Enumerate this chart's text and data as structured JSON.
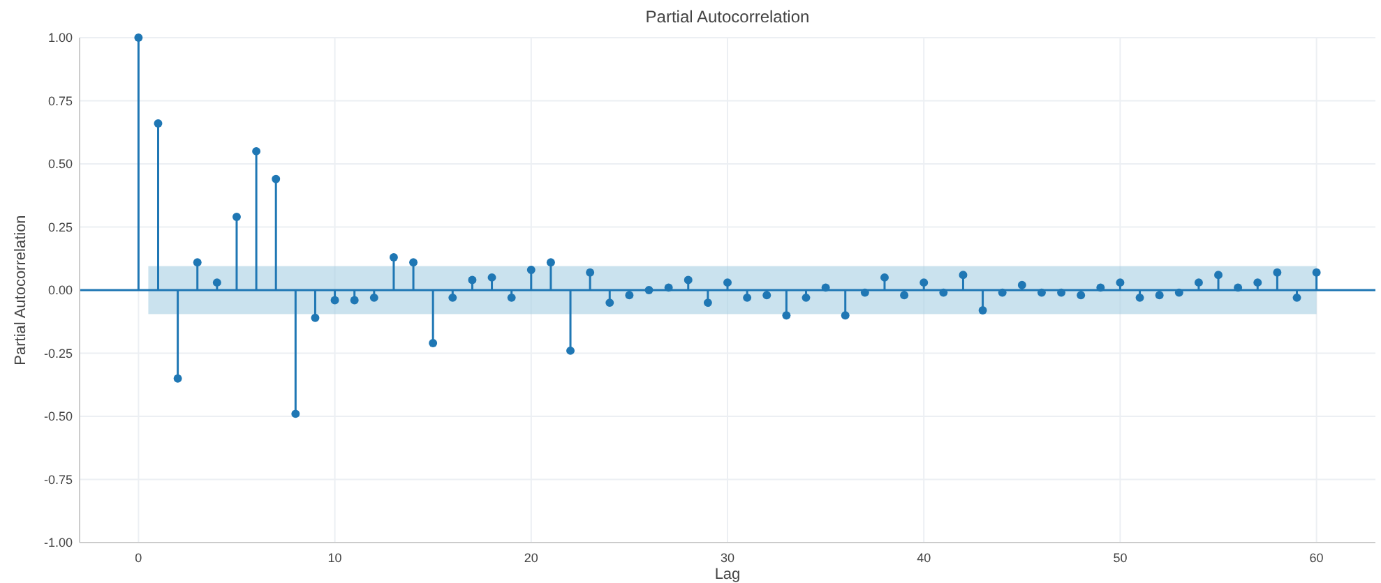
{
  "chart_data": {
    "type": "lollipop",
    "title": "Partial Autocorrelation",
    "xlabel": "Lag",
    "ylabel": "Partial Autocorrelation",
    "x": [
      0,
      1,
      2,
      3,
      4,
      5,
      6,
      7,
      8,
      9,
      10,
      11,
      12,
      13,
      14,
      15,
      16,
      17,
      18,
      19,
      20,
      21,
      22,
      23,
      24,
      25,
      26,
      27,
      28,
      29,
      30,
      31,
      32,
      33,
      34,
      35,
      36,
      37,
      38,
      39,
      40,
      41,
      42,
      43,
      44,
      45,
      46,
      47,
      48,
      49,
      50,
      51,
      52,
      53,
      54,
      55,
      56,
      57,
      58,
      59,
      60
    ],
    "series": [
      {
        "color": "#1f77b4",
        "values": [
          1.0,
          0.66,
          -0.35,
          0.11,
          0.03,
          0.29,
          0.55,
          0.44,
          -0.49,
          -0.11,
          -0.04,
          -0.04,
          -0.03,
          0.13,
          0.11,
          -0.21,
          -0.03,
          0.04,
          0.05,
          -0.03,
          0.08,
          0.11,
          -0.24,
          0.07,
          -0.05,
          -0.02,
          0.0,
          0.01,
          0.04,
          -0.05,
          0.03,
          -0.03,
          -0.02,
          -0.1,
          -0.03,
          0.01,
          -0.1,
          -0.01,
          0.05,
          -0.02,
          0.03,
          -0.01,
          0.06,
          -0.08,
          -0.01,
          0.02,
          -0.01,
          -0.01,
          -0.02,
          0.01,
          0.03,
          -0.03,
          -0.02,
          -0.01,
          0.03,
          0.06,
          0.01,
          0.03,
          0.07,
          -0.03,
          0.07
        ]
      }
    ],
    "xlim": [
      -3,
      63
    ],
    "xticks": [
      0,
      10,
      20,
      30,
      40,
      50,
      60
    ],
    "ylim": [
      -1,
      1
    ],
    "yticks": [
      {
        "value": -1,
        "label": "-1.00"
      },
      {
        "value": -0.75,
        "label": "-0.75"
      },
      {
        "value": -0.5,
        "label": "-0.50"
      },
      {
        "value": -0.25,
        "label": "-0.25"
      },
      {
        "value": 0,
        "label": "0.00"
      },
      {
        "value": 0.25,
        "label": "0.25"
      },
      {
        "value": 0.5,
        "label": "0.50"
      },
      {
        "value": 0.75,
        "label": "0.75"
      },
      {
        "value": 1,
        "label": "1.00"
      }
    ],
    "bands": [
      {
        "axis": "y",
        "from": -0.095,
        "to": 0.095,
        "color": "#a6cee3"
      }
    ],
    "ref_lines": [
      {
        "axis": "y",
        "value": 0,
        "color": "#1f77b4"
      }
    ],
    "grid": true,
    "marker": "circle"
  }
}
